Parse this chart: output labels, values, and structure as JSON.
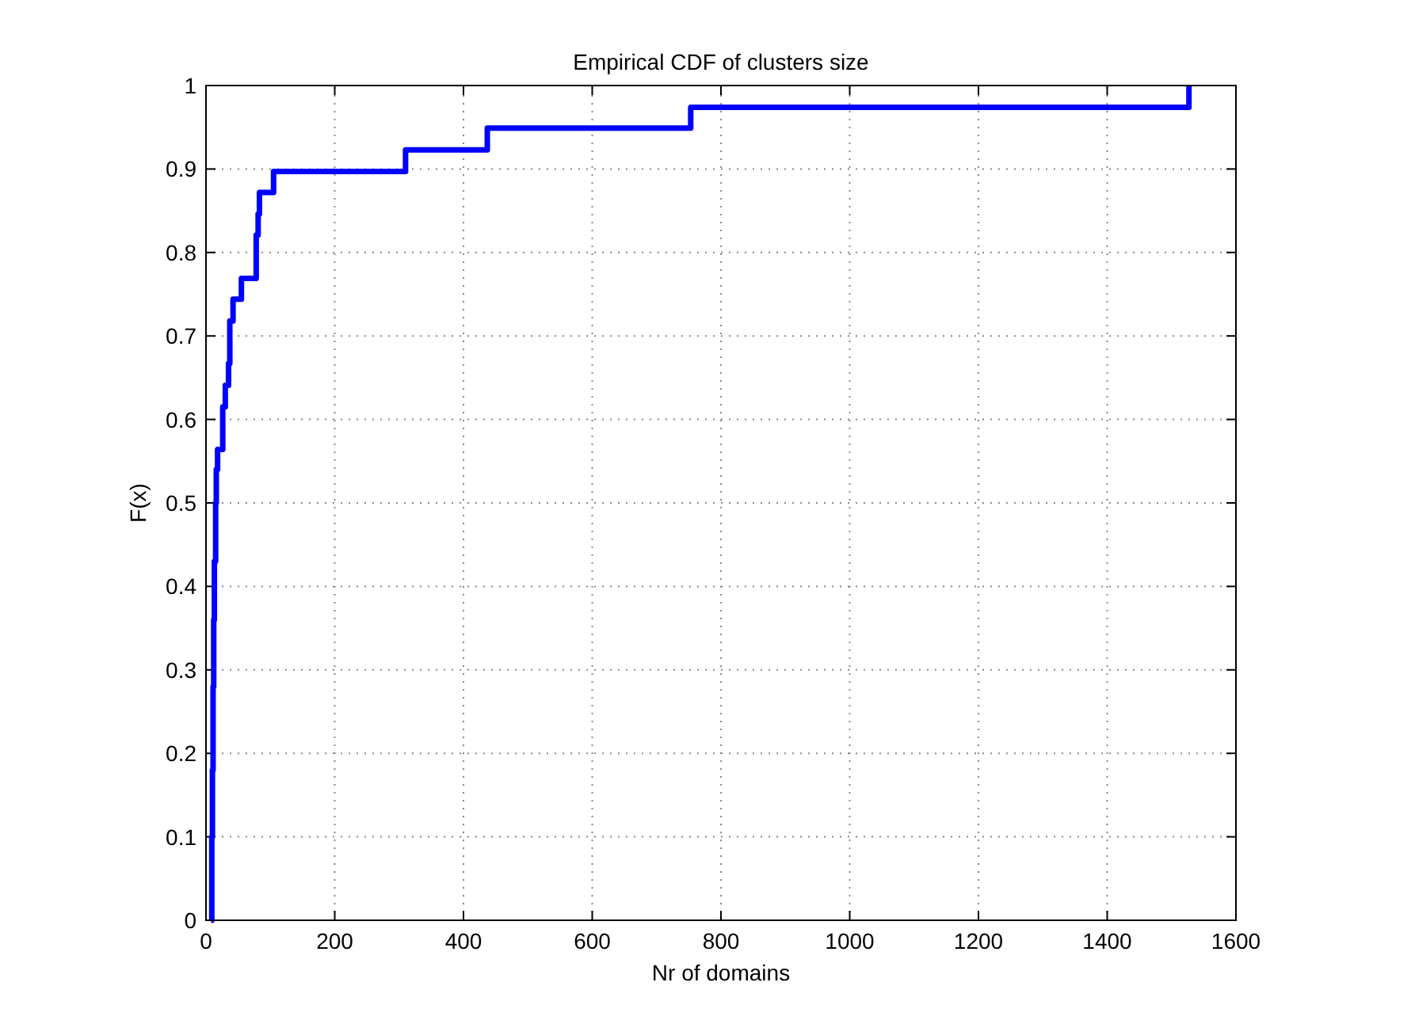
{
  "chart_data": {
    "type": "step",
    "title": "Empirical CDF of clusters size",
    "xlabel": "Nr of domains",
    "ylabel": "F(x)",
    "x": [
      8,
      9,
      10,
      11,
      12,
      13,
      15,
      16,
      18,
      26,
      30,
      35,
      37,
      42,
      55,
      78,
      81,
      83,
      105,
      310,
      437,
      753,
      1527
    ],
    "series": [
      {
        "color": "#0000ff",
        "values": [
          0,
          0.1,
          0.18,
          0.28,
          0.36,
          0.43,
          0.5,
          0.54,
          0.564,
          0.615,
          0.641,
          0.667,
          0.718,
          0.744,
          0.769,
          0.821,
          0.846,
          0.872,
          0.897,
          0.923,
          0.949,
          0.974,
          1
        ]
      }
    ],
    "xlim": [
      0,
      1600
    ],
    "xticks": [
      0,
      200,
      400,
      600,
      800,
      1000,
      1200,
      1400,
      1600
    ],
    "ylim": [
      0,
      1
    ],
    "yticks": [
      0,
      0.1,
      0.2,
      0.3,
      0.4,
      0.5,
      0.6,
      0.7,
      0.8,
      0.9,
      1
    ],
    "grid": true,
    "line_style": "solid"
  }
}
